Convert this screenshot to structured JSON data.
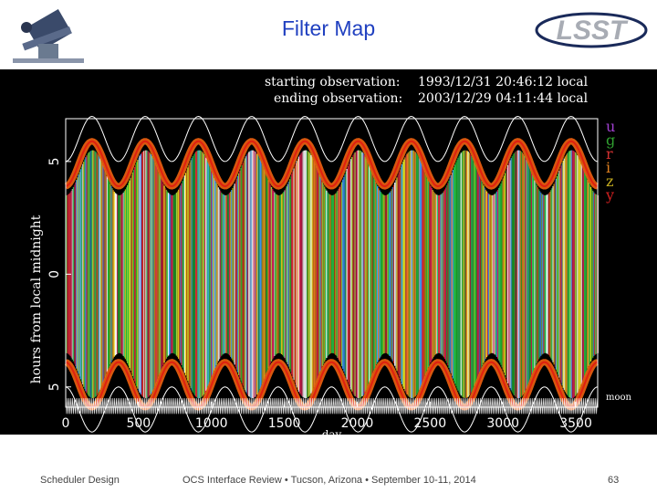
{
  "slide": {
    "title": "Filter Map",
    "footer_left": "Scheduler Design",
    "footer_center": "OCS Interface Review • Tucson, Arizona • September 10-11, 2014",
    "page_number": "63"
  },
  "logos": {
    "left_icon": "telescope-icon",
    "right_text": "LSST",
    "right_color": "#a8acb4"
  },
  "observations": {
    "starting_label": "starting observation:",
    "starting_value": "1993/12/31 20:46:12 local",
    "ending_label": "ending observation:",
    "ending_value": "2003/12/29 04:11:44 local"
  },
  "chart_data": {
    "type": "heatmap",
    "title": "",
    "xlabel": "day",
    "ylabel": "hours from local midnight",
    "xlim": [
      0,
      3650
    ],
    "ylim": [
      -5.9,
      6.9
    ],
    "x_ticks": [
      0,
      500,
      1000,
      1500,
      2000,
      2500,
      3000,
      3500
    ],
    "y_ticks": [
      -5,
      0,
      5
    ],
    "legend": {
      "placement": "right",
      "entries": [
        {
          "name": "u",
          "color": "#a040d0"
        },
        {
          "name": "g",
          "color": "#30a030"
        },
        {
          "name": "r",
          "color": "#d03030"
        },
        {
          "name": "i",
          "color": "#e08020"
        },
        {
          "name": "z",
          "color": "#c8b020"
        },
        {
          "name": "y",
          "color": "#d02020"
        }
      ]
    },
    "extra_label": "moon",
    "twilight_hours_max": 5.9,
    "twilight_hours_min": 3.9,
    "twilight_period_days": 365.25,
    "background_color": "#000000",
    "curve_color": "#ffffff"
  }
}
